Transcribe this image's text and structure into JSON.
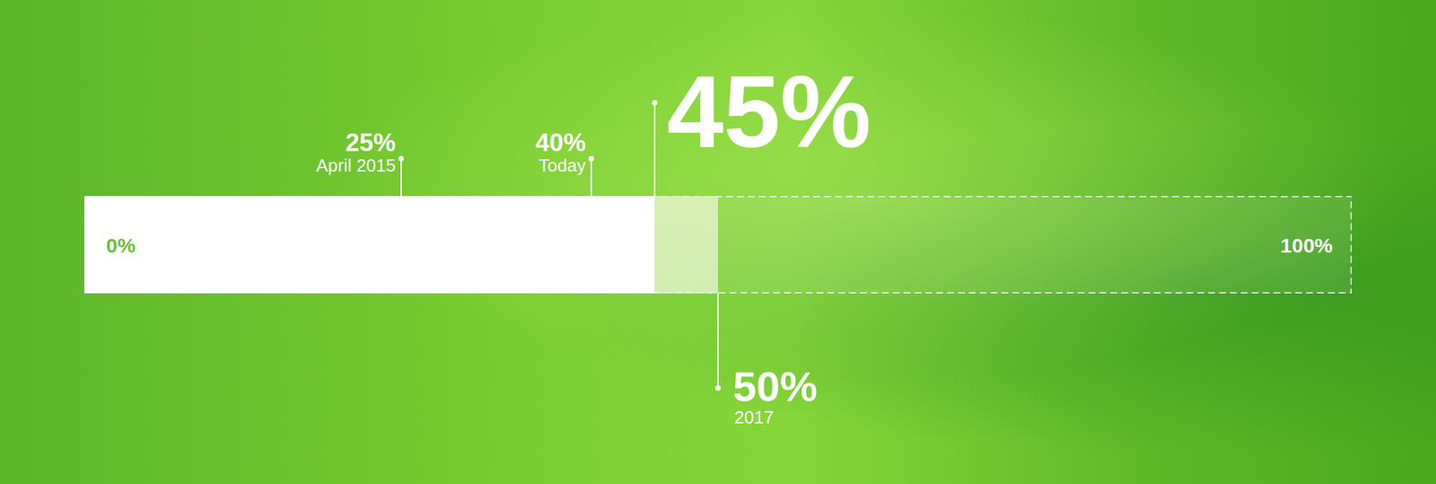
{
  "chart_data": {
    "type": "bar",
    "orientation": "horizontal",
    "stacked": true,
    "categories": [
      null
    ],
    "series": [
      {
        "color": "#ffffff",
        "values": [
          45
        ]
      },
      {
        "color": "#eaf6d6",
        "values": [
          5
        ]
      }
    ],
    "xlim": [
      0,
      100
    ],
    "xticks": [
      {
        "value": 0,
        "label": "0%"
      },
      {
        "value": 100,
        "label": "100%"
      }
    ],
    "annotations": [
      {
        "value": 25,
        "label": "25%",
        "text": "April 2015"
      },
      {
        "value": 40,
        "label": "40%",
        "text": "Today"
      },
      {
        "value": 45,
        "label": "45%"
      },
      {
        "value": 50,
        "label": "50%",
        "text": "2017"
      }
    ],
    "tick_labels": "x"
  }
}
